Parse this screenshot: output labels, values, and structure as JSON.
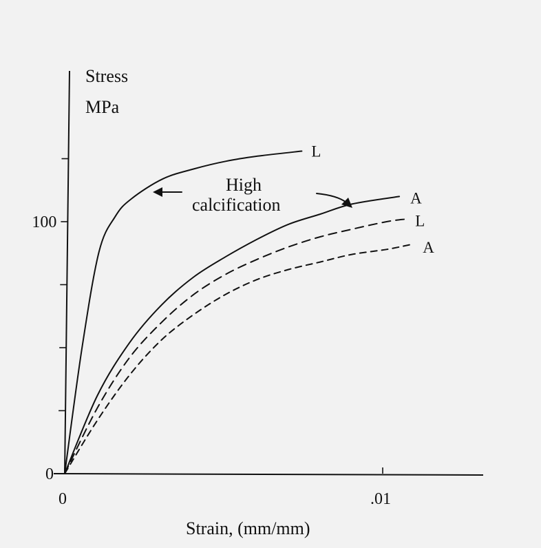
{
  "chart_data": {
    "type": "line",
    "ylabel": [
      "Stress",
      "MPa"
    ],
    "xlabel": "Strain, (mm/mm)",
    "x_ticks": [
      {
        "value": 0,
        "label": "0"
      },
      {
        "value": 0.01,
        "label": ".01"
      }
    ],
    "y_ticks": [
      {
        "value": 0,
        "label": "0"
      },
      {
        "value": 100,
        "label": "100"
      }
    ],
    "y_minor_ticks": [
      25,
      50,
      75,
      125
    ],
    "xlim": [
      0,
      0.0133
    ],
    "ylim": [
      0,
      160
    ],
    "grid": false,
    "legend": "none",
    "series": [
      {
        "name": "L",
        "style": "solid",
        "x": [
          0,
          0.0005,
          0.001,
          0.0015,
          0.002,
          0.003,
          0.004,
          0.005,
          0.006,
          0.0074
        ],
        "y": [
          0,
          50,
          88,
          102,
          109,
          117,
          121,
          124,
          126,
          128
        ]
      },
      {
        "name": "A",
        "style": "solid",
        "x": [
          0,
          0.001,
          0.002,
          0.003,
          0.004,
          0.005,
          0.006,
          0.007,
          0.008,
          0.009,
          0.0105
        ],
        "y": [
          0,
          31,
          52,
          67,
          78,
          86,
          93,
          99,
          103,
          107,
          110
        ]
      },
      {
        "name": "L",
        "style": "dashed",
        "x": [
          0,
          0.001,
          0.002,
          0.003,
          0.004,
          0.005,
          0.006,
          0.007,
          0.008,
          0.009,
          0.0101,
          0.0107
        ],
        "y": [
          0,
          26,
          46,
          60,
          71,
          79,
          85,
          90,
          94,
          97,
          100,
          101
        ]
      },
      {
        "name": "A",
        "style": "dashed",
        "x": [
          0,
          0.001,
          0.002,
          0.003,
          0.004,
          0.005,
          0.006,
          0.007,
          0.008,
          0.009,
          0.0101,
          0.0109
        ],
        "y": [
          0,
          21,
          39,
          53,
          63,
          71,
          77,
          81,
          84,
          87,
          89,
          91
        ]
      }
    ],
    "annotations": [
      {
        "text": [
          "High",
          "calcification"
        ],
        "points_to": [
          [
            0.0028,
            112
          ],
          [
            0.0091,
            106
          ]
        ]
      }
    ]
  }
}
